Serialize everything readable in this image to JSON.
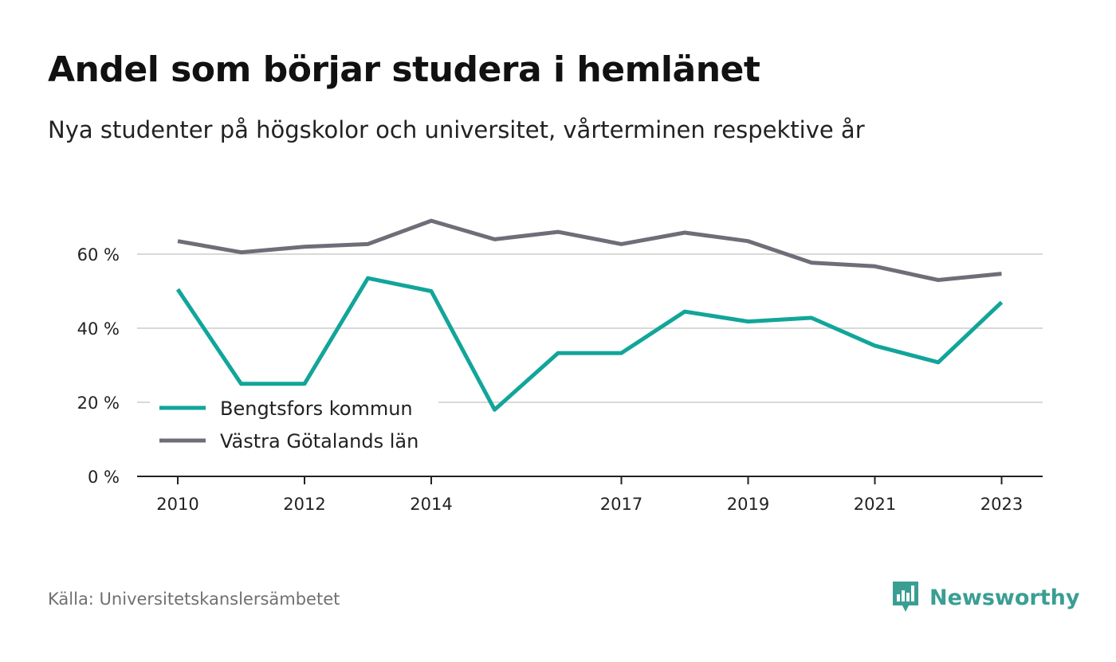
{
  "header": {
    "title": "Andel som börjar studera i hemlänet",
    "subtitle": "Nya studenter på högskolor och universitet, vårterminen respektive år"
  },
  "footer": {
    "source": "Källa: Universitetskanslersämbetet",
    "brand": "Newsworthy",
    "brand_icon": "bar-chart-speech-bubble-icon"
  },
  "colors": {
    "series_1": "#12a59a",
    "series_2": "#6e6e78",
    "grid": "#d9d9d9",
    "axis": "#222222",
    "brand": "#3a9e93"
  },
  "chart_data": {
    "type": "line",
    "title": "Andel som börjar studera i hemlänet",
    "subtitle": "Nya studenter på högskolor och universitet, vårterminen respektive år",
    "xlabel": "",
    "ylabel": "",
    "x": [
      2010,
      2011,
      2012,
      2013,
      2014,
      2015,
      2016,
      2017,
      2018,
      2019,
      2020,
      2021,
      2022,
      2023
    ],
    "x_tick_labels": [
      "2010",
      "2012",
      "2014",
      "2017",
      "2019",
      "2021",
      "2023"
    ],
    "y_tick_labels": [
      "0 %",
      "20 %",
      "40 %",
      "60 %"
    ],
    "y_ticks": [
      0,
      20,
      40,
      60
    ],
    "ylim": [
      0,
      70
    ],
    "grid": true,
    "legend_position": "bottom-left",
    "series": [
      {
        "name": "Bengtsfors kommun",
        "values": [
          50.5,
          25,
          25,
          53.5,
          50,
          18,
          33.3,
          33.3,
          44.5,
          41.8,
          42.8,
          35.3,
          30.8,
          47
        ]
      },
      {
        "name": "Västra Götalands län",
        "values": [
          63.5,
          60.5,
          62,
          62.7,
          69,
          64,
          66,
          62.7,
          65.8,
          63.5,
          57.7,
          56.7,
          53,
          54.7
        ]
      }
    ]
  }
}
